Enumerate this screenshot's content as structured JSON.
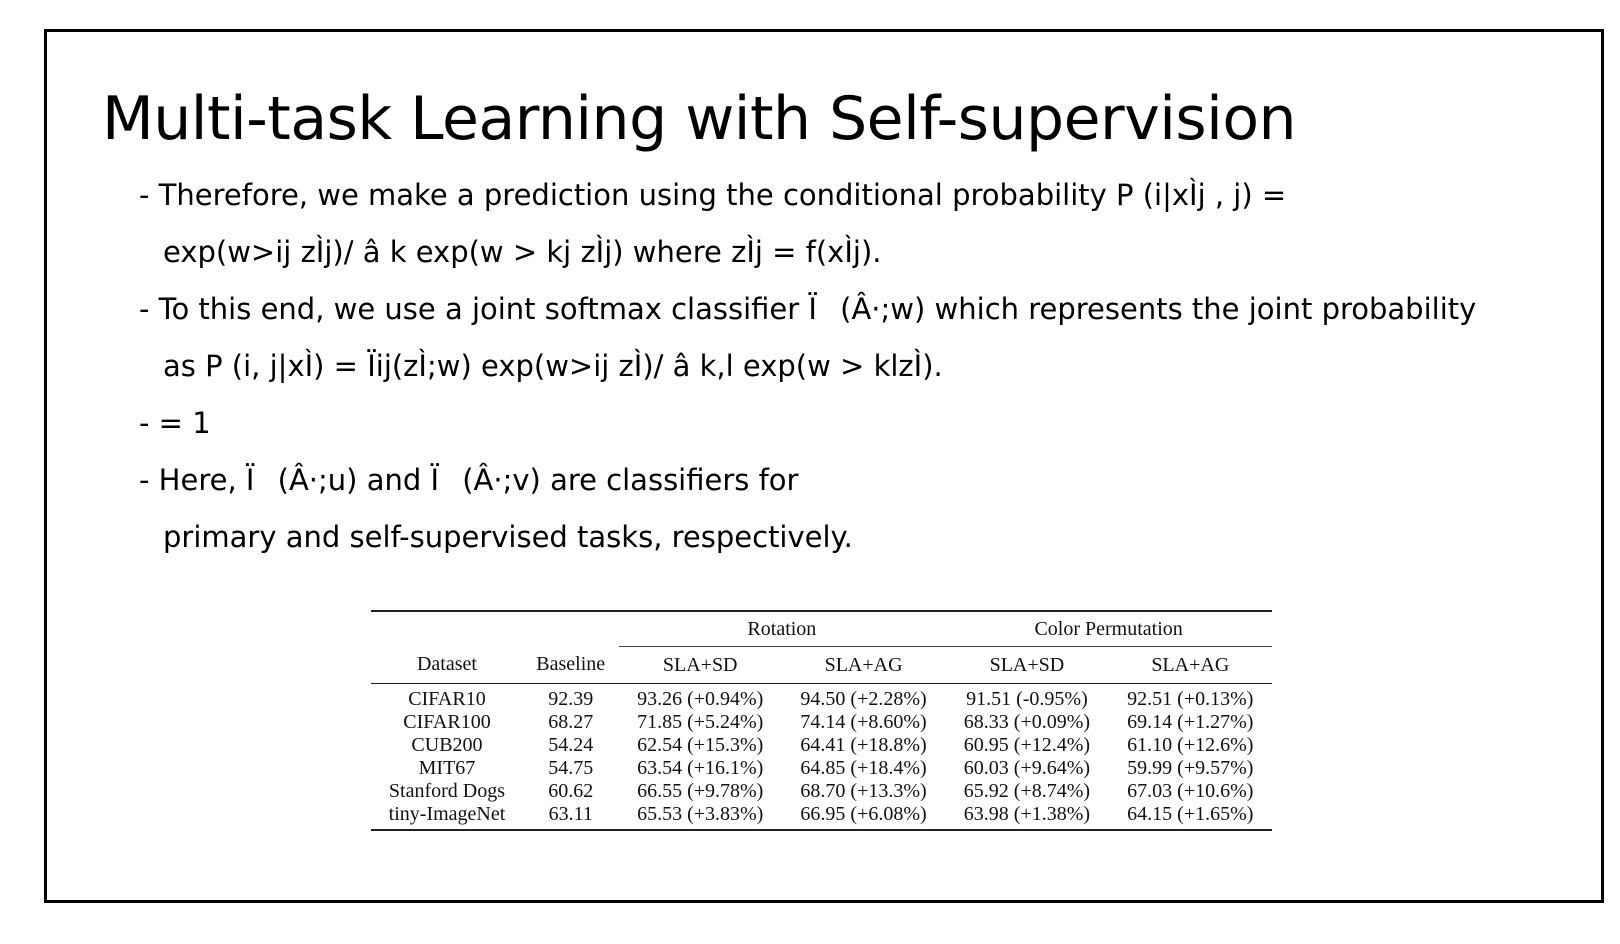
{
  "slide": {
    "title": "Multi-task Learning with Self-supervision",
    "lines": [
      "- Therefore, we make a prediction using the conditional probability P (i|xÌ\u001aj , j) =",
      "exp(w>ij zÌ\u001aj)/ â k exp(w > kj zÌ\u001aj) where zÌ\u001aj = f(xÌ\u001aj).",
      "- To this end, we use a joint softmax classifier Ï(Â·;w) which represents the joint probability",
      "as P (i, j|xÌ\u001a) = Ïij(zÌ\u001a;w) exp(w>ij zÌ\u001a)/ â k,l exp(w > klzÌ\u001a).",
      "- = 1",
      "- Here, Ï(Â·;u) and Ï(Â·;v) are classifiers for",
      "primary and self-supervised tasks, respectively."
    ]
  },
  "table": {
    "group_headers": {
      "rotation": "Rotation",
      "color_permutation": "Color Permutation"
    },
    "columns": {
      "dataset": "Dataset",
      "baseline": "Baseline",
      "rot_sd": "SLA+SD",
      "rot_ag": "SLA+AG",
      "col_sd": "SLA+SD",
      "col_ag": "SLA+AG"
    },
    "rows": [
      [
        "CIFAR10",
        "92.39",
        "93.26 (+0.94%)",
        "94.50 (+2.28%)",
        "91.51 (-0.95%)",
        "92.51 (+0.13%)"
      ],
      [
        "CIFAR100",
        "68.27",
        "71.85 (+5.24%)",
        "74.14 (+8.60%)",
        "68.33 (+0.09%)",
        "69.14 (+1.27%)"
      ],
      [
        "CUB200",
        "54.24",
        "62.54 (+15.3%)",
        "64.41 (+18.8%)",
        "60.95 (+12.4%)",
        "61.10 (+12.6%)"
      ],
      [
        "MIT67",
        "54.75",
        "63.54 (+16.1%)",
        "64.85 (+18.4%)",
        "60.03 (+9.64%)",
        "59.99 (+9.57%)"
      ],
      [
        "Stanford Dogs",
        "60.62",
        "66.55 (+9.78%)",
        "68.70 (+13.3%)",
        "65.92 (+8.74%)",
        "67.03 (+10.6%)"
      ],
      [
        "tiny-ImageNet",
        "63.11",
        "65.53 (+3.83%)",
        "66.95 (+6.08%)",
        "63.98 (+1.38%)",
        "64.15 (+1.65%)"
      ]
    ]
  }
}
